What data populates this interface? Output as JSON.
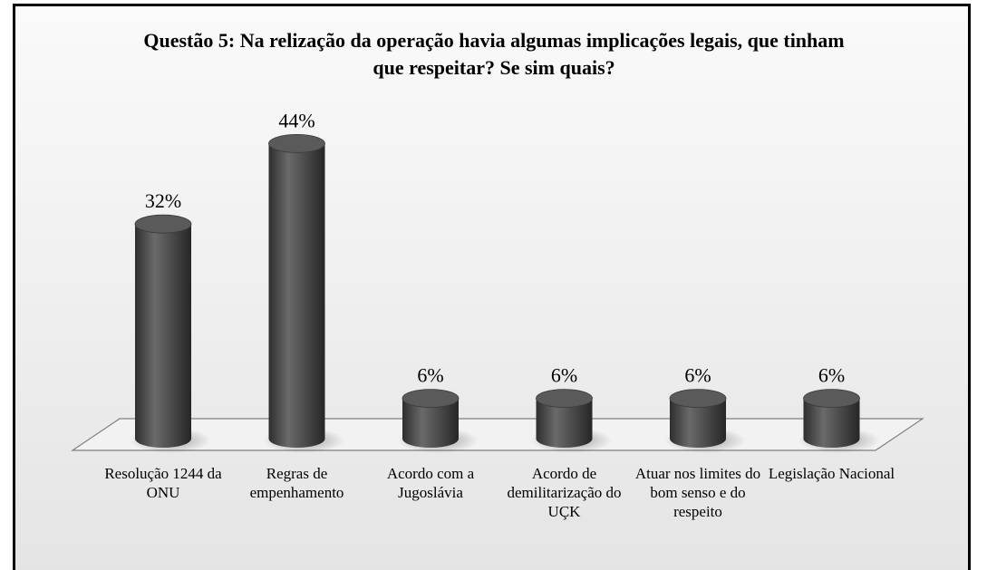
{
  "chart_data": {
    "type": "bar",
    "title": "Questão 5: Na relização da operação havia algumas implicações legais, que tinham que respeitar? Se sim quais?",
    "categories": [
      "Resolução 1244 da ONU",
      "Regras de empenhamento",
      "Acordo com a Jugoslávia",
      "Acordo de demilitarização do UÇK",
      "Atuar nos limites do bom senso e do respeito",
      "Legislação Nacional"
    ],
    "values": [
      32,
      44,
      6,
      6,
      6,
      6
    ],
    "value_labels": [
      "32%",
      "44%",
      "6%",
      "6%",
      "6%",
      "6%"
    ],
    "color": "#555555"
  }
}
